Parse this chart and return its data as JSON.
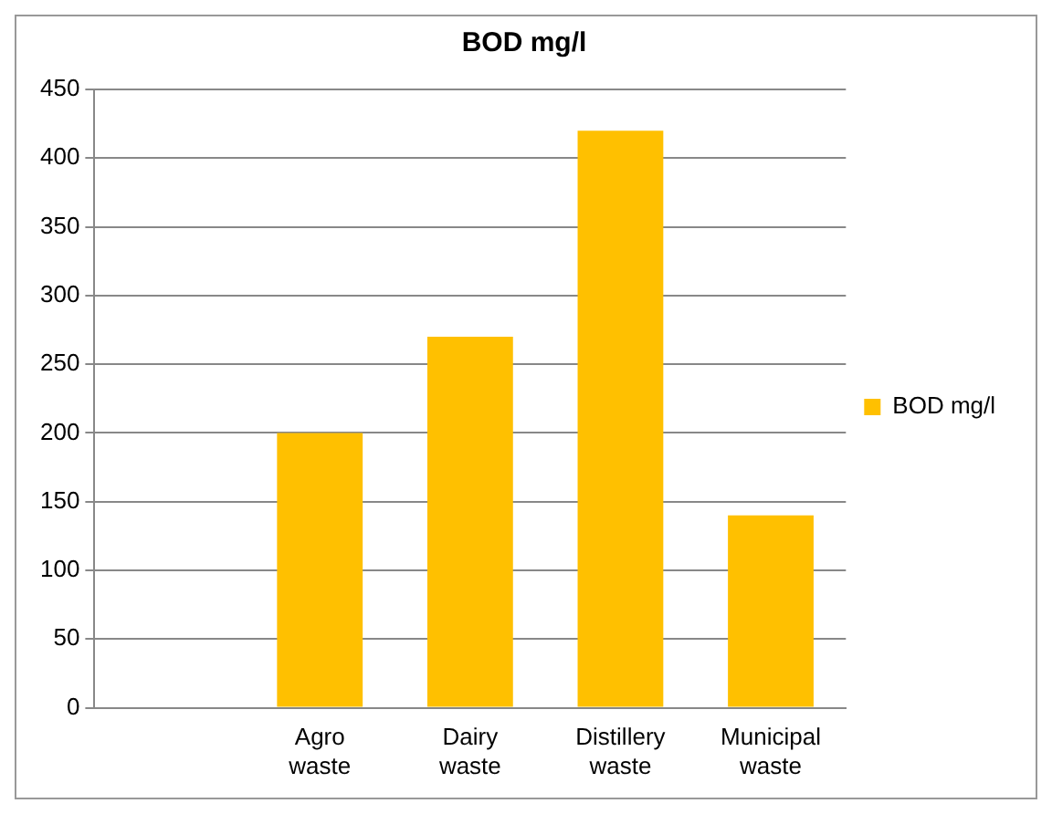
{
  "chart_data": {
    "type": "bar",
    "title": "BOD mg/l",
    "categories": [
      null,
      "Agro waste",
      "Dairy waste",
      "Distillery waste",
      "Municipal waste"
    ],
    "series": [
      {
        "name": "BOD mg/l",
        "color": "#ffc000",
        "values": [
          null,
          200,
          270,
          420,
          140
        ]
      }
    ],
    "ylim": [
      0,
      450
    ],
    "yticks": [
      0,
      50,
      100,
      150,
      200,
      250,
      300,
      350,
      400,
      450
    ],
    "grid": "y",
    "legend": "right"
  }
}
